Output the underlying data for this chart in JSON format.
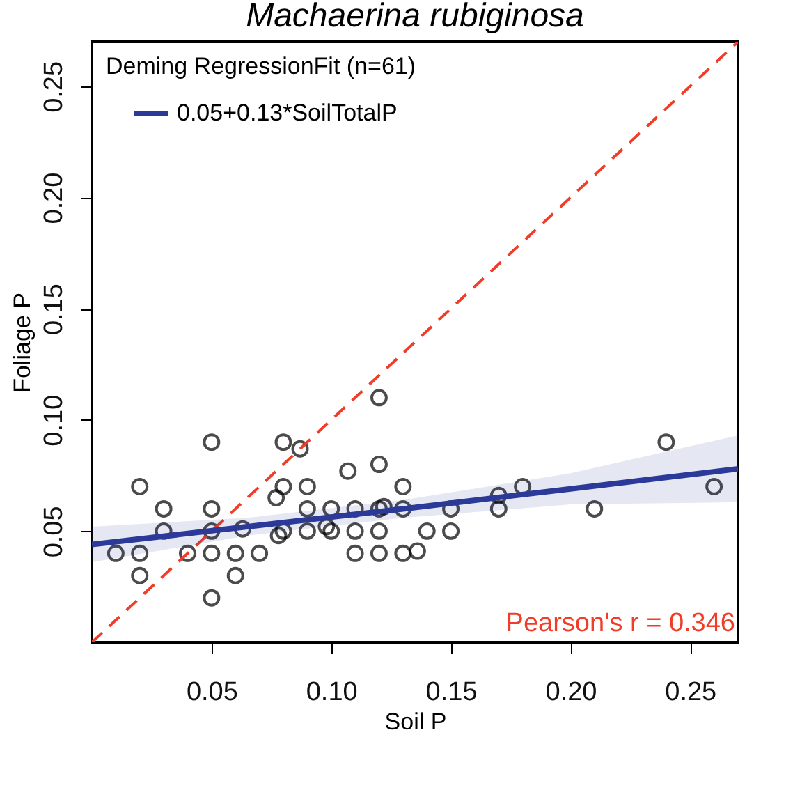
{
  "chart_data": {
    "type": "scatter",
    "title": "Machaerina rubiginosa",
    "xlabel": "Soil P",
    "ylabel": "Foliage P",
    "xlim": [
      0,
      0.27
    ],
    "ylim": [
      0,
      0.27
    ],
    "xticks": [
      0.05,
      {
        "value": 0.1,
        "label": "0.10"
      },
      0.15,
      {
        "value": 0.2,
        "label": "0.20"
      },
      0.25
    ],
    "yticks": [
      0.05,
      {
        "value": 0.1,
        "label": "0.10"
      },
      0.15,
      {
        "value": 0.2,
        "label": "0.20"
      },
      0.25
    ],
    "grid": false,
    "legend": "top left",
    "legend_title": "Deming RegressionFit (n=61)",
    "annotations": [
      "Pearson's r = 0.346"
    ],
    "series": [
      {
        "type": "scatter",
        "marker": "circle",
        "color": "#000000",
        "x": [
          0.01,
          0.02,
          0.02,
          0.02,
          0.03,
          0.03,
          0.04,
          0.05,
          0.05,
          0.05,
          0.05,
          0.05,
          0.06,
          0.06,
          0.063,
          0.07,
          0.077,
          0.08,
          0.08,
          0.078,
          0.08,
          0.087,
          0.09,
          0.09,
          0.09,
          0.098,
          0.1,
          0.1,
          0.107,
          0.11,
          0.11,
          0.11,
          0.12,
          0.12,
          0.12,
          0.122,
          0.12,
          0.12,
          0.13,
          0.13,
          0.13,
          0.136,
          0.14,
          0.15,
          0.15,
          0.17,
          0.17,
          0.18,
          0.21,
          0.24,
          0.26
        ],
        "values": [
          0.04,
          0.04,
          0.03,
          0.07,
          0.06,
          0.05,
          0.04,
          0.09,
          0.06,
          0.05,
          0.04,
          0.02,
          0.04,
          0.03,
          0.051,
          0.04,
          0.065,
          0.09,
          0.07,
          0.048,
          0.05,
          0.087,
          0.07,
          0.06,
          0.05,
          0.052,
          0.06,
          0.05,
          0.077,
          0.06,
          0.05,
          0.04,
          0.11,
          0.08,
          0.06,
          0.061,
          0.05,
          0.04,
          0.07,
          0.06,
          0.04,
          0.041,
          0.05,
          0.06,
          0.05,
          0.066,
          0.06,
          0.07,
          0.06,
          0.09,
          0.07
        ]
      },
      {
        "type": "line",
        "line_style": "dashed",
        "color": "#f03c28",
        "x": [
          0,
          0.27
        ],
        "values": [
          0,
          0.27
        ]
      },
      {
        "type": "line",
        "name": "0.05+0.13*SoilTotalP",
        "color": "#2b3a98",
        "x": [
          0,
          0.065,
          0.13,
          0.2,
          0.27
        ],
        "values": [
          0.044,
          0.052,
          0.06,
          0.069,
          0.078
        ],
        "lower": [
          0.036,
          0.048,
          0.056,
          0.062,
          0.063
        ],
        "upper": [
          0.052,
          0.056,
          0.064,
          0.076,
          0.093
        ]
      }
    ]
  }
}
